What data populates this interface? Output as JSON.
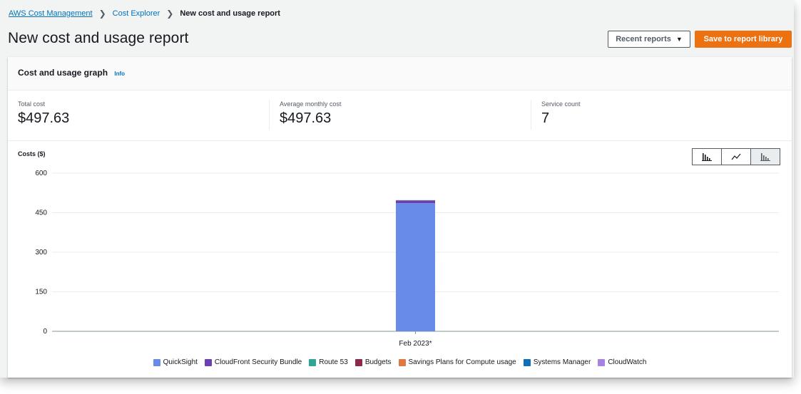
{
  "breadcrumb": {
    "root": "AWS Cost Management",
    "parent": "Cost Explorer",
    "current": "New cost and usage report"
  },
  "page": {
    "title": "New cost and usage report"
  },
  "header_actions": {
    "recent_label": "Recent reports",
    "save_label": "Save to report library"
  },
  "panel": {
    "title": "Cost and usage graph",
    "info": "Info"
  },
  "metrics": {
    "total_label": "Total cost",
    "total_value": "$497.63",
    "avg_label": "Average monthly cost",
    "avg_value": "$497.63",
    "service_label": "Service count",
    "service_value": "7"
  },
  "chart_toggle": {
    "options": [
      "bar-chart-icon",
      "line-chart-icon",
      "stacked-bar-chart-icon"
    ],
    "selected": "stacked-bar-chart-icon"
  },
  "colors": {
    "primary_button": "#ec7211",
    "link": "#0073bb"
  },
  "chart_data": {
    "type": "bar",
    "stacked": true,
    "title": "",
    "ylabel": "Costs ($)",
    "xlabel": "",
    "ylim": [
      0,
      600
    ],
    "yticks": [
      0,
      150,
      300,
      450,
      600
    ],
    "grid": true,
    "legend_position": "bottom",
    "categories": [
      "Feb 2023*"
    ],
    "series": [
      {
        "name": "QuickSight",
        "color": "#688ae8",
        "values": [
          486
        ]
      },
      {
        "name": "CloudFront Security Bundle",
        "color": "#6b40b2",
        "values": [
          9
        ]
      },
      {
        "name": "Route 53",
        "color": "#2ea597",
        "values": [
          1
        ]
      },
      {
        "name": "Budgets",
        "color": "#8c2a4e",
        "values": [
          0.6
        ]
      },
      {
        "name": "Savings Plans for Compute usage",
        "color": "#e07941",
        "values": [
          0.5
        ]
      },
      {
        "name": "Systems Manager",
        "color": "#0f6eb5",
        "values": [
          0.3
        ]
      },
      {
        "name": "CloudWatch",
        "color": "#a783e1",
        "values": [
          0.23
        ]
      }
    ]
  }
}
